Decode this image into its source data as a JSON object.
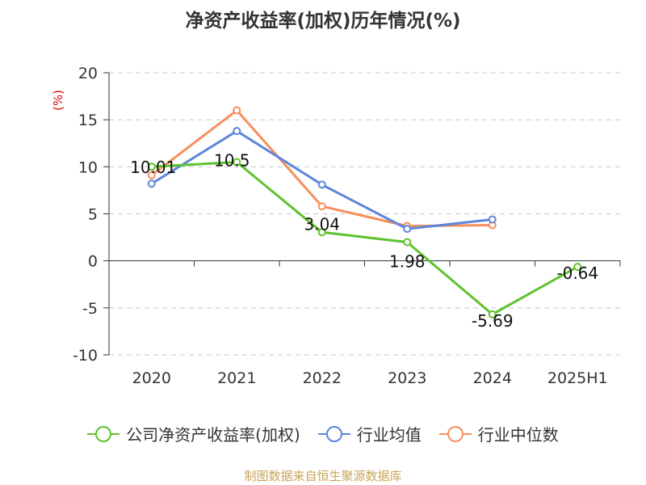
{
  "chart_data": {
    "type": "line",
    "title": "净资产收益率(加权)历年情况(%)",
    "ylabel": "(%)",
    "xlabel": "",
    "categories": [
      "2020",
      "2021",
      "2022",
      "2023",
      "2024",
      "2025H1"
    ],
    "ylim": [
      -10,
      20
    ],
    "yticks": [
      -10,
      -5,
      0,
      5,
      10,
      15,
      20
    ],
    "grid": true,
    "legend_position": "bottom",
    "series": [
      {
        "name": "公司净资产收益率(加权)",
        "color": "#5ec22e",
        "values": [
          10.01,
          10.5,
          3.04,
          1.98,
          -5.69,
          -0.64
        ],
        "labels": [
          "10.01",
          "10.5",
          "3.04",
          "1.98",
          "-5.69",
          "-0.64"
        ]
      },
      {
        "name": "行业均值",
        "color": "#5b86db",
        "values": [
          8.2,
          13.8,
          8.1,
          3.4,
          4.4,
          null
        ]
      },
      {
        "name": "行业中位数",
        "color": "#f78f5d",
        "values": [
          9.1,
          16.0,
          5.8,
          3.7,
          3.8,
          null
        ]
      }
    ]
  },
  "source": "制图数据来自恒生聚源数据库"
}
